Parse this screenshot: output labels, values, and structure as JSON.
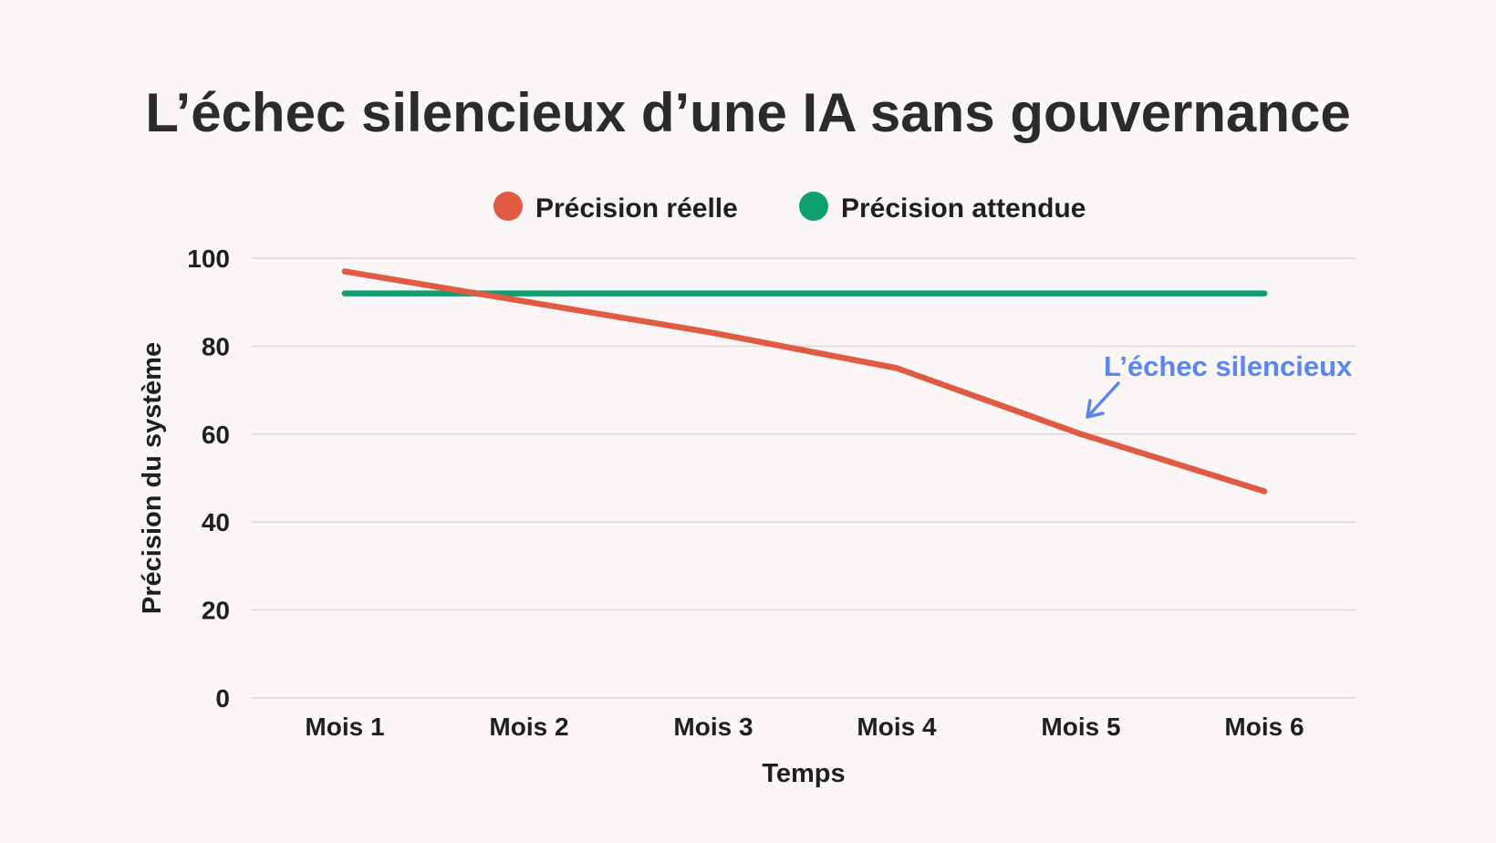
{
  "chart_data": {
    "type": "line",
    "title": "L’échec silencieux d’une IA sans gouvernance",
    "categories": [
      "Mois 1",
      "Mois 2",
      "Mois 3",
      "Mois 4",
      "Mois 5",
      "Mois 6"
    ],
    "series": [
      {
        "name": "Précision réelle",
        "color": "#e05a44",
        "values": [
          97,
          90,
          83,
          75,
          60,
          47
        ]
      },
      {
        "name": "Précision attendue",
        "color": "#10a070",
        "values": [
          92,
          92,
          92,
          92,
          92,
          92
        ]
      }
    ],
    "xlabel": "Temps",
    "ylabel": "Précision du système",
    "ylim": [
      0,
      100
    ],
    "yticks": [
      "0",
      "20",
      "40",
      "60",
      "80",
      "100"
    ],
    "grid": true,
    "legend": "top-center",
    "annotation": {
      "text": "L’échec silencieux",
      "color": "#5b86f0",
      "target_category": "Mois 5",
      "target_series": "Précision réelle"
    }
  }
}
